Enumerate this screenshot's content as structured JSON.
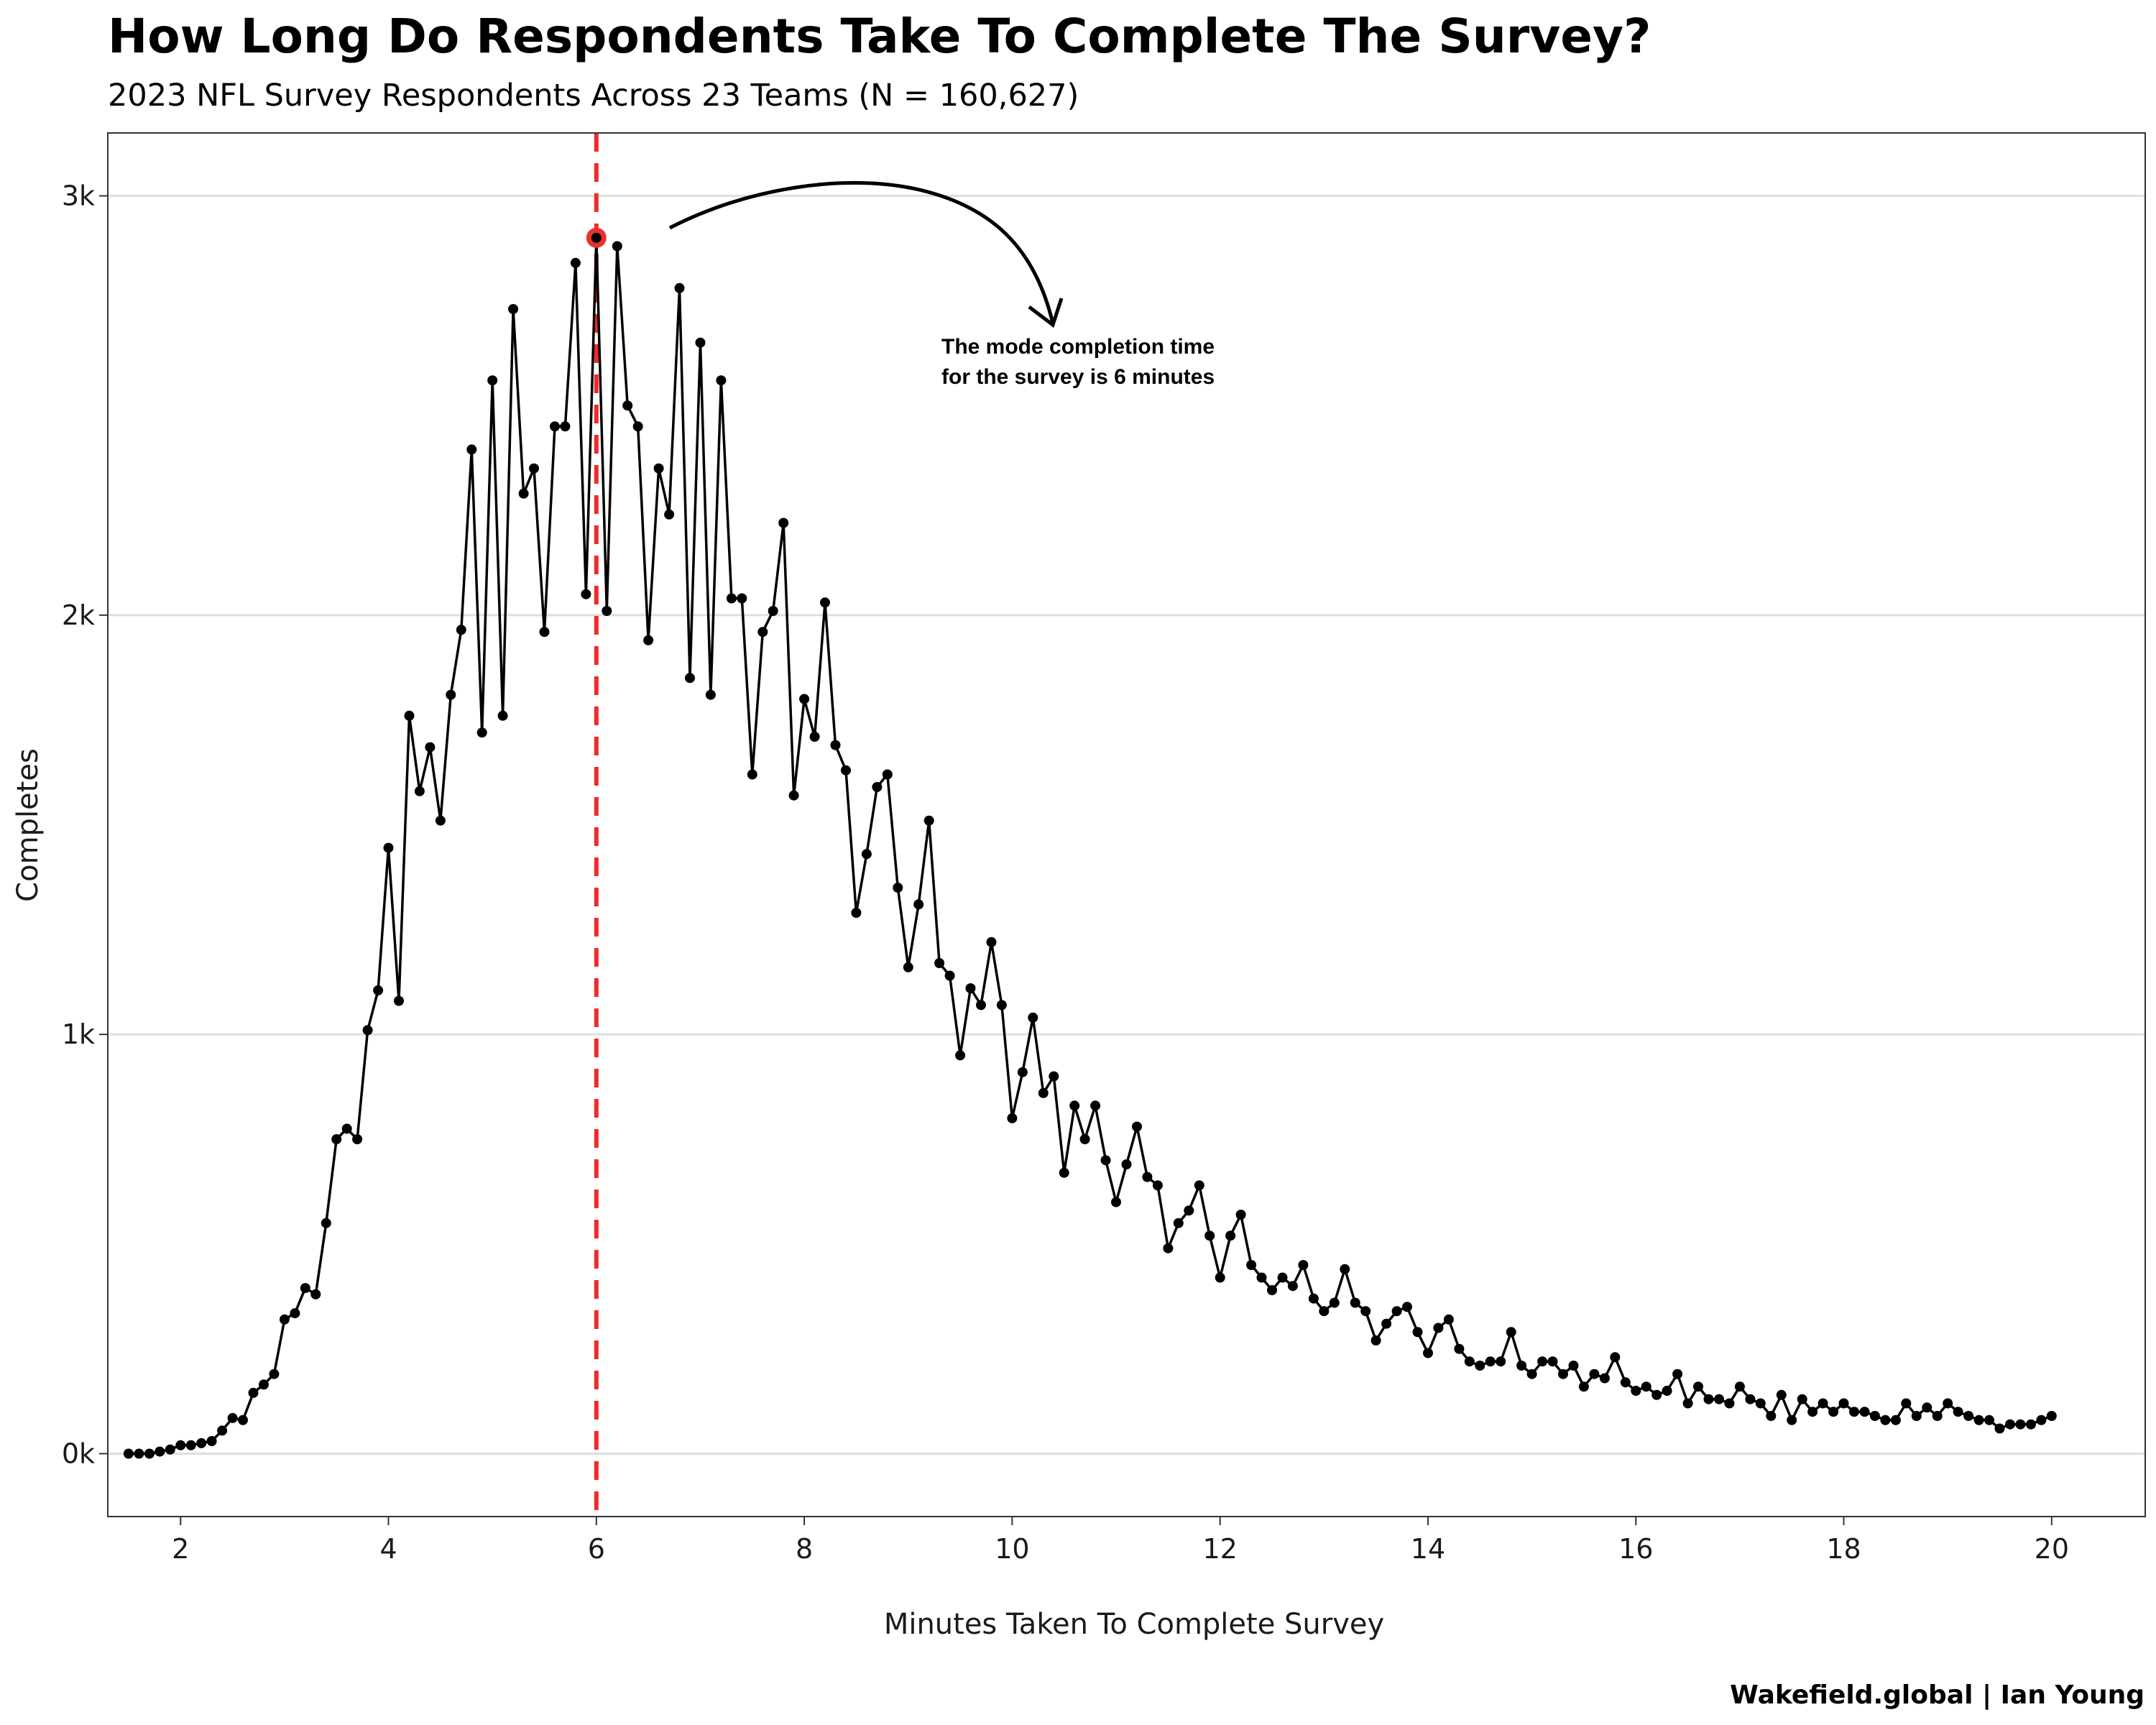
{
  "chart_data": {
    "type": "line",
    "title": "How Long Do Respondents Take To Complete The Survey?",
    "subtitle": "2023 NFL Survey Respondents Across 23 Teams (N = 160,627)",
    "xlabel": "Minutes Taken To Complete Survey",
    "ylabel": "Completes",
    "xlim": [
      1.3,
      20.9
    ],
    "ylim": [
      -150,
      3150
    ],
    "x_ticks": [
      2,
      4,
      6,
      8,
      10,
      12,
      14,
      16,
      18,
      20
    ],
    "x_tick_labels": [
      "2",
      "4",
      "6",
      "8",
      "10",
      "12",
      "14",
      "16",
      "18",
      "20"
    ],
    "y_ticks": [
      0,
      1000,
      2000,
      3000
    ],
    "y_tick_labels": [
      "0k",
      "1k",
      "2k",
      "3k"
    ],
    "grid": "horizontal major",
    "legend": "none",
    "colors": {
      "line": "#000000",
      "mode_line": "#ee2a2a",
      "mode_marker": "#e8312e",
      "grid": "#dedede",
      "border": "#333333"
    },
    "mode": {
      "x": 6.0,
      "y": 2900,
      "line_style": "dashed"
    },
    "annotation": "The mode completion time\nfor the survey is 6 minutes",
    "credit": "Wakefield.global | Ian Young",
    "series": [
      {
        "x_start": 1.5,
        "x_step": 0.1,
        "values": [
          0,
          0,
          0,
          5,
          10,
          20,
          20,
          25,
          30,
          55,
          85,
          80,
          145,
          165,
          190,
          320,
          335,
          395,
          380,
          550,
          750,
          775,
          750,
          1010,
          1105,
          1445,
          1080,
          1760,
          1580,
          1685,
          1510,
          1810,
          1965,
          2395,
          1720,
          2560,
          1760,
          2730,
          2290,
          2350,
          1960,
          2450,
          2450,
          2840,
          2050,
          2900,
          2010,
          2880,
          2500,
          2450,
          1940,
          2350,
          2240,
          2780,
          1850,
          2650,
          1810,
          2560,
          2040,
          2040,
          1620,
          1960,
          2010,
          2220,
          1570,
          1800,
          1710,
          2030,
          1690,
          1630,
          1290,
          1430,
          1590,
          1620,
          1350,
          1160,
          1310,
          1510,
          1170,
          1140,
          950,
          1110,
          1070,
          1220,
          1070,
          800,
          910,
          1040,
          860,
          900,
          670,
          830,
          750,
          830,
          700,
          600,
          690,
          780,
          660,
          640,
          490,
          550,
          580,
          640,
          520,
          420,
          520,
          570,
          450,
          420,
          390,
          420,
          400,
          450,
          370,
          340,
          360,
          440,
          360,
          340,
          270,
          310,
          340,
          350,
          290,
          240,
          300,
          320,
          250,
          220,
          210,
          220,
          220,
          290,
          210,
          190,
          220,
          220,
          190,
          210,
          160,
          190,
          180,
          230,
          170,
          150,
          160,
          140,
          150,
          190,
          120,
          160,
          130,
          130,
          120,
          160,
          130,
          120,
          90,
          140,
          80,
          130,
          100,
          120,
          100,
          120,
          100,
          100,
          90,
          80,
          80,
          120,
          90,
          110,
          90,
          120,
          100,
          90,
          80,
          80,
          60,
          70,
          70,
          70,
          80,
          90
        ]
      }
    ]
  }
}
